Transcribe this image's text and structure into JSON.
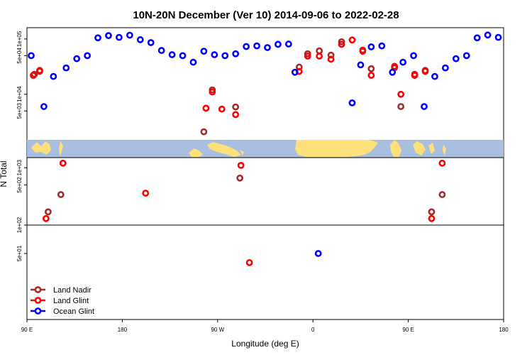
{
  "chart_data": {
    "type": "scatter",
    "title": "10N-20N December (Ver 10)   2014-09-06 to 2022-02-28",
    "xlabel": "Longitude (deg E)",
    "ylabel": "N Total",
    "x_ticks": [
      "90 E",
      "180",
      "90 W",
      "0",
      "90 E",
      "180"
    ],
    "x_tick_values": [
      -270,
      -180,
      -90,
      0,
      90,
      180
    ],
    "xlim": [
      -270,
      180
    ],
    "y_tick_labels": [
      "1e+05",
      "5e+04",
      "1e+04",
      "5e+03",
      "1e+03",
      "5e+02",
      "1e+02",
      "5e+01"
    ],
    "legend_position": "bottom-left",
    "series": [
      {
        "name": "Land Nadir",
        "color": "#a52a2a",
        "points": [
          {
            "x": -263,
            "y": 23000
          },
          {
            "x": -258,
            "y": 26000
          },
          {
            "x": -250,
            "y": 170
          },
          {
            "x": -238,
            "y": 340
          },
          {
            "x": -103,
            "y": 2100
          },
          {
            "x": -95,
            "y": 12000
          },
          {
            "x": -73,
            "y": 5900
          },
          {
            "x": -69,
            "y": 660
          },
          {
            "x": -13,
            "y": 31000
          },
          {
            "x": -5,
            "y": 54000
          },
          {
            "x": 6,
            "y": 61000
          },
          {
            "x": 17,
            "y": 51000
          },
          {
            "x": 27,
            "y": 89000
          },
          {
            "x": 47,
            "y": 63000
          },
          {
            "x": 55,
            "y": 29000
          },
          {
            "x": 77,
            "y": 30000
          },
          {
            "x": 83,
            "y": 6000
          },
          {
            "x": 96,
            "y": 23000
          },
          {
            "x": 106,
            "y": 27000
          },
          {
            "x": 112,
            "y": 170
          },
          {
            "x": 122,
            "y": 340
          }
        ]
      },
      {
        "name": "Land Glint",
        "color": "#ff0000",
        "points": [
          {
            "x": -264,
            "y": 22000
          },
          {
            "x": -258,
            "y": 27000
          },
          {
            "x": -252,
            "y": 130
          },
          {
            "x": -236,
            "y": 1200
          },
          {
            "x": -158,
            "y": 360
          },
          {
            "x": -101,
            "y": 5600
          },
          {
            "x": -95,
            "y": 11000
          },
          {
            "x": -86,
            "y": 5400
          },
          {
            "x": -73,
            "y": 4300
          },
          {
            "x": -68,
            "y": 1100
          },
          {
            "x": -60,
            "y": 40
          },
          {
            "x": -13,
            "y": 26000
          },
          {
            "x": -5,
            "y": 49000
          },
          {
            "x": 6,
            "y": 49000
          },
          {
            "x": 17,
            "y": 43000
          },
          {
            "x": 27,
            "y": 80000
          },
          {
            "x": 37,
            "y": 96000
          },
          {
            "x": 47,
            "y": 60000
          },
          {
            "x": 55,
            "y": 22000
          },
          {
            "x": 77,
            "y": 32000
          },
          {
            "x": 83,
            "y": 10000
          },
          {
            "x": 96,
            "y": 22000
          },
          {
            "x": 106,
            "y": 26000
          },
          {
            "x": 112,
            "y": 130
          },
          {
            "x": 122,
            "y": 1200
          }
        ]
      },
      {
        "name": "Ocean Glint",
        "color": "#0000ff",
        "points": [
          {
            "x": -266,
            "y": 50000
          },
          {
            "x": -254,
            "y": 6000
          },
          {
            "x": -245,
            "y": 21000
          },
          {
            "x": -233,
            "y": 30000
          },
          {
            "x": -223,
            "y": 44000
          },
          {
            "x": -213,
            "y": 50000
          },
          {
            "x": -203,
            "y": 105000
          },
          {
            "x": -193,
            "y": 115000
          },
          {
            "x": -183,
            "y": 107000
          },
          {
            "x": -173,
            "y": 117000
          },
          {
            "x": -163,
            "y": 97000
          },
          {
            "x": -153,
            "y": 86000
          },
          {
            "x": -143,
            "y": 62000
          },
          {
            "x": -133,
            "y": 52000
          },
          {
            "x": -123,
            "y": 50000
          },
          {
            "x": -113,
            "y": 38000
          },
          {
            "x": -103,
            "y": 60000
          },
          {
            "x": -93,
            "y": 52000
          },
          {
            "x": -83,
            "y": 50000
          },
          {
            "x": -73,
            "y": 54000
          },
          {
            "x": -63,
            "y": 73000
          },
          {
            "x": -53,
            "y": 75000
          },
          {
            "x": -43,
            "y": 70000
          },
          {
            "x": -33,
            "y": 80000
          },
          {
            "x": -23,
            "y": 81000
          },
          {
            "x": -17,
            "y": 25000
          },
          {
            "x": 5,
            "y": 50
          },
          {
            "x": 37,
            "y": 7000
          },
          {
            "x": 45,
            "y": 34000
          },
          {
            "x": 55,
            "y": 72000
          },
          {
            "x": 65,
            "y": 75000
          },
          {
            "x": 75,
            "y": 25000
          },
          {
            "x": 85,
            "y": 38000
          },
          {
            "x": 95,
            "y": 50000
          },
          {
            "x": 105,
            "y": 6000
          },
          {
            "x": 115,
            "y": 21000
          },
          {
            "x": 125,
            "y": 30000
          },
          {
            "x": 135,
            "y": 44000
          },
          {
            "x": 145,
            "y": 50000
          },
          {
            "x": 155,
            "y": 105000
          },
          {
            "x": 165,
            "y": 118000
          },
          {
            "x": 175,
            "y": 107000
          }
        ]
      }
    ]
  }
}
